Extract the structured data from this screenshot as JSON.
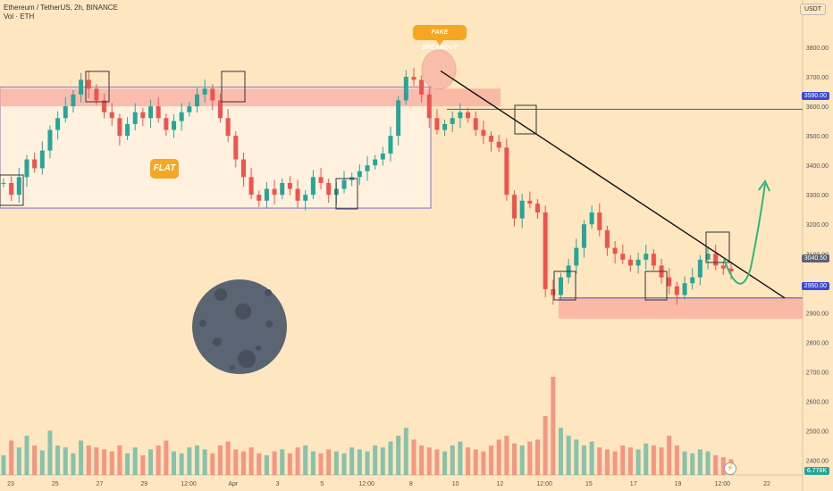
{
  "header": {
    "symbol_line": "Ethereum / TetherUS, 2h, BINANCE",
    "vol_line": "Vol · ETH",
    "currency": "USDT"
  },
  "annotations": {
    "flat": "FLAT",
    "fake_breakout": "FAKE BREAKOUT"
  },
  "colors": {
    "background": "#fde6c0",
    "up": "#26a69a",
    "down": "#ef5350",
    "zone_fill": "#f8a59a",
    "flat_fill": "#fff1de",
    "level_line": "#3b4bd8",
    "box": "#333333",
    "projection": "#2eb67d",
    "moon": "#5a6472"
  },
  "badges": {
    "level_3590": "3590.00",
    "level_2950": "2950.00",
    "current_price": "3040.50",
    "volume": "6.778K"
  },
  "chart_data": {
    "type": "candlestick",
    "ylim": [
      2350,
      3900
    ],
    "y_ticks": [
      "3800.00",
      "3700.00",
      "3600.00",
      "3500.00",
      "3400.00",
      "3300.00",
      "3200.00",
      "3100.00",
      "2900.00",
      "2800.00",
      "2700.00",
      "2600.00",
      "2500.00",
      "2400.00"
    ],
    "x_ticks": [
      "23",
      "25",
      "27",
      "29",
      "12:00",
      "Apr",
      "3",
      "5",
      "12:00",
      "8",
      "10",
      "12",
      "12:00",
      "15",
      "17",
      "19",
      "12:00",
      "22"
    ],
    "levels": [
      3590,
      2950
    ],
    "resistance_zone": [
      3600,
      3660
    ],
    "support_zone": [
      2880,
      2950
    ],
    "flat_range": [
      3255,
      3665
    ],
    "close_path": [
      3340,
      3300,
      3360,
      3420,
      3390,
      3450,
      3520,
      3560,
      3600,
      3640,
      3690,
      3660,
      3620,
      3580,
      3560,
      3500,
      3540,
      3580,
      3560,
      3600,
      3560,
      3520,
      3550,
      3580,
      3600,
      3640,
      3660,
      3620,
      3560,
      3500,
      3420,
      3360,
      3300,
      3280,
      3320,
      3300,
      3340,
      3320,
      3280,
      3300,
      3360,
      3340,
      3300,
      3320,
      3350,
      3360,
      3380,
      3400,
      3420,
      3440,
      3500,
      3620,
      3700,
      3690,
      3640,
      3560,
      3520,
      3540,
      3560,
      3580,
      3560,
      3520,
      3500,
      3480,
      3460,
      3300,
      3220,
      3280,
      3270,
      3240,
      2980,
      2960,
      3020,
      3060,
      3120,
      3200,
      3240,
      3180,
      3120,
      3100,
      3080,
      3060,
      3080,
      3100,
      3060,
      3020,
      2990,
      2960,
      3000,
      3020,
      3080,
      3100,
      3060,
      3050,
      3040
    ],
    "volume_path": [
      20,
      35,
      28,
      40,
      30,
      25,
      45,
      30,
      28,
      22,
      35,
      30,
      28,
      26,
      24,
      30,
      22,
      28,
      20,
      26,
      30,
      35,
      24,
      22,
      28,
      30,
      26,
      22,
      30,
      34,
      26,
      24,
      28,
      22,
      20,
      24,
      26,
      22,
      28,
      30,
      24,
      22,
      26,
      24,
      22,
      28,
      26,
      24,
      30,
      28,
      34,
      40,
      48,
      36,
      30,
      28,
      26,
      24,
      30,
      34,
      28,
      26,
      24,
      30,
      36,
      40,
      32,
      30,
      34,
      36,
      60,
      100,
      48,
      40,
      36,
      30,
      34,
      28,
      26,
      24,
      30,
      28,
      26,
      32,
      30,
      28,
      40,
      30,
      24,
      22,
      26,
      24,
      20,
      18,
      16
    ]
  }
}
